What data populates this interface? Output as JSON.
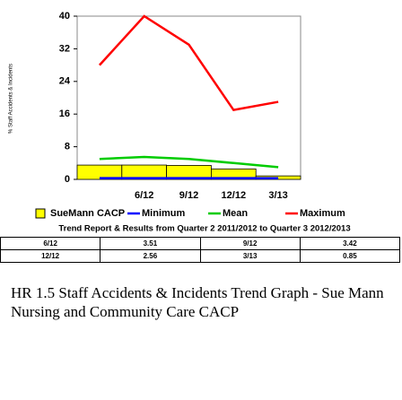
{
  "chart_data": {
    "type": "bar-line",
    "y_label": "% Staff Accidents & Incidents",
    "caption": "Trend Report & Results from Quarter 2 2011/2012 to Quarter 3 2012/2013",
    "categories": [
      null,
      "6/12",
      "9/12",
      "12/12",
      "3/13"
    ],
    "ylim": [
      0,
      40
    ],
    "yticks": [
      0,
      8,
      16,
      24,
      32,
      40
    ],
    "series": [
      {
        "name": "SueMann CACP",
        "kind": "bar",
        "color": "#ffff00",
        "values": [
          3.5,
          3.51,
          3.42,
          2.56,
          0.85
        ]
      },
      {
        "name": "Minimum",
        "kind": "line",
        "color": "#0000ff",
        "values": [
          0.3,
          0.3,
          0.3,
          0.3,
          0.3
        ]
      },
      {
        "name": "Mean",
        "kind": "line",
        "color": "#00cc00",
        "values": [
          5,
          5.5,
          5,
          4,
          3
        ]
      },
      {
        "name": "Maximum",
        "kind": "line",
        "color": "#ff0000",
        "values": [
          28,
          40,
          33,
          17,
          19
        ]
      }
    ]
  },
  "table": {
    "rows": [
      [
        "6/12",
        "3.51",
        "9/12",
        "3.42"
      ],
      [
        "12/12",
        "2.56",
        "3/13",
        "0.85"
      ]
    ]
  },
  "heading": "HR 1.5 Staff Accidents & Incidents Trend Graph - Sue Mann Nursing and Community Care CACP"
}
